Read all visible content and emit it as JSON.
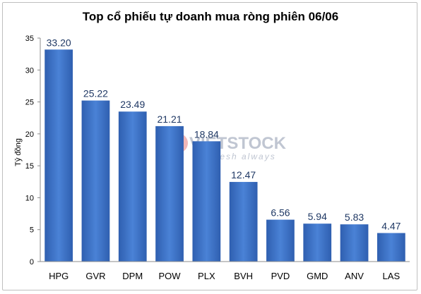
{
  "chart_data": {
    "type": "bar",
    "title": "Top cổ phiếu tự doanh mua ròng phiên 06/06",
    "ylabel": "Tỷ đồng",
    "xlabel": "",
    "ylim": [
      0,
      35
    ],
    "yticks": [
      0,
      5,
      10,
      15,
      20,
      25,
      30,
      35
    ],
    "categories": [
      "HPG",
      "GVR",
      "DPM",
      "POW",
      "PLX",
      "BVH",
      "PVD",
      "GMD",
      "ANV",
      "LAS"
    ],
    "values": [
      33.2,
      25.22,
      23.49,
      21.21,
      18.84,
      12.47,
      6.56,
      5.94,
      5.83,
      4.47
    ],
    "data_labels": [
      "33.20",
      "25.22",
      "23.49",
      "21.21",
      "18.84",
      "12.47",
      "6.56",
      "5.94",
      "5.83",
      "4.47"
    ],
    "bar_color": "#3a6fc4",
    "bar_color_light": "#4f86d9",
    "grid": false,
    "legend": "none"
  },
  "watermark": {
    "brand": "VIETSTOCK",
    "tagline": "fresh always",
    "color": "#c0c6d2",
    "accent": "#e06060"
  }
}
